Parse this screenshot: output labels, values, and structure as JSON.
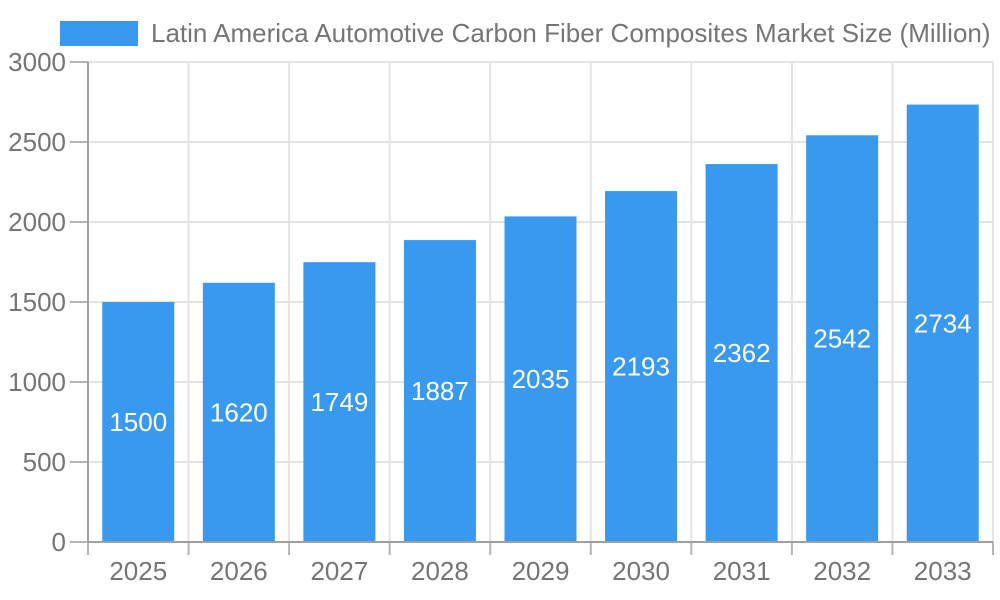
{
  "chart_data": {
    "type": "bar",
    "title": "Latin America Automotive Carbon Fiber Composites Market Size (Million)",
    "categories": [
      "2025",
      "2026",
      "2027",
      "2028",
      "2029",
      "2030",
      "2031",
      "2032",
      "2033"
    ],
    "values": [
      1500,
      1620,
      1749,
      1887,
      2035,
      2193,
      2362,
      2542,
      2734
    ],
    "xlabel": "",
    "ylabel": "",
    "ylim": [
      0,
      3000
    ],
    "ytick_interval": 500,
    "ytick_labels": [
      "0",
      "500",
      "1000",
      "1500",
      "2000",
      "2500",
      "3000"
    ],
    "grid": true,
    "legend_position": "top-left",
    "value_labels_inside_bars": true,
    "colors": {
      "bar": "#3899EE",
      "grid": "#E4E4E4",
      "axis": "#A0A0A0",
      "tick": "#B5B5B5",
      "text": "#757575",
      "bar_label": "#FFFFFF",
      "background": "#FFFFFF"
    }
  }
}
